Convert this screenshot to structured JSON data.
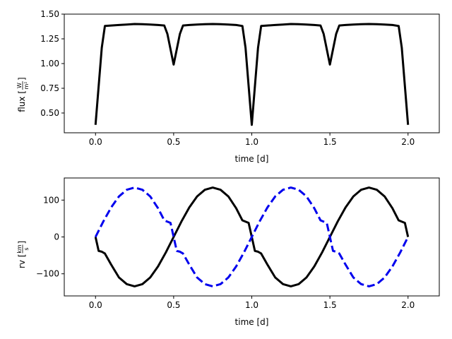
{
  "chart_data": [
    {
      "type": "line",
      "xlabel": "time [d]",
      "ylabel": {
        "prefix": "flux [",
        "num": "W",
        "den": "m²",
        "suffix": "]"
      },
      "xlim": [
        -0.2,
        2.2
      ],
      "ylim": [
        0.3,
        1.5
      ],
      "xticks": [
        0.0,
        0.5,
        1.0,
        1.5,
        2.0
      ],
      "xtick_labels": [
        "0.0",
        "0.5",
        "1.0",
        "1.5",
        "2.0"
      ],
      "yticks": [
        0.5,
        0.75,
        1.0,
        1.25,
        1.5
      ],
      "ytick_labels": [
        "0.50",
        "0.75",
        "1.00",
        "1.25",
        "1.50"
      ],
      "grid": false,
      "series": [
        {
          "color": "#000000",
          "dash": "solid",
          "x": [
            0.0,
            0.04,
            0.06,
            0.1,
            0.15,
            0.2,
            0.25,
            0.3,
            0.35,
            0.4,
            0.44,
            0.46,
            0.5,
            0.54,
            0.56,
            0.6,
            0.65,
            0.7,
            0.75,
            0.8,
            0.85,
            0.9,
            0.94,
            0.96,
            1.0,
            1.04,
            1.06,
            1.1,
            1.15,
            1.2,
            1.25,
            1.3,
            1.35,
            1.4,
            1.44,
            1.46,
            1.5,
            1.54,
            1.56,
            1.6,
            1.65,
            1.7,
            1.75,
            1.8,
            1.85,
            1.9,
            1.94,
            1.96,
            2.0
          ],
          "y": [
            0.38,
            1.16,
            1.38,
            1.385,
            1.39,
            1.395,
            1.4,
            1.398,
            1.395,
            1.39,
            1.385,
            1.3,
            0.99,
            1.3,
            1.385,
            1.39,
            1.395,
            1.398,
            1.4,
            1.398,
            1.395,
            1.39,
            1.38,
            1.16,
            0.38,
            1.16,
            1.38,
            1.385,
            1.39,
            1.395,
            1.4,
            1.398,
            1.395,
            1.39,
            1.385,
            1.3,
            0.99,
            1.3,
            1.385,
            1.39,
            1.395,
            1.398,
            1.4,
            1.398,
            1.395,
            1.39,
            1.38,
            1.16,
            0.38
          ]
        }
      ]
    },
    {
      "type": "line",
      "xlabel": "time [d]",
      "ylabel": {
        "prefix": "rv [",
        "num": "km",
        "den": "s",
        "suffix": "]"
      },
      "xlim": [
        -0.2,
        2.2
      ],
      "ylim": [
        -160,
        160
      ],
      "xticks": [
        0.0,
        0.5,
        1.0,
        1.5,
        2.0
      ],
      "xtick_labels": [
        "0.0",
        "0.5",
        "1.0",
        "1.5",
        "2.0"
      ],
      "yticks": [
        -100,
        0,
        100
      ],
      "ytick_labels": [
        "−100",
        "0",
        "100"
      ],
      "grid": false,
      "series": [
        {
          "color": "#000000",
          "dash": "solid",
          "x": [
            0.0,
            0.02,
            0.04,
            0.06,
            0.1,
            0.15,
            0.2,
            0.25,
            0.3,
            0.35,
            0.4,
            0.45,
            0.5,
            0.55,
            0.6,
            0.65,
            0.7,
            0.75,
            0.8,
            0.85,
            0.9,
            0.94,
            0.98,
            1.0,
            1.02,
            1.04,
            1.06,
            1.1,
            1.15,
            1.2,
            1.25,
            1.3,
            1.35,
            1.4,
            1.45,
            1.5,
            1.55,
            1.6,
            1.65,
            1.7,
            1.75,
            1.8,
            1.85,
            1.9,
            1.94,
            1.98,
            2.0
          ],
          "y": [
            0,
            -38,
            -40,
            -45,
            -75,
            -110,
            -128,
            -134,
            -128,
            -110,
            -80,
            -42,
            0,
            42,
            80,
            110,
            128,
            134,
            128,
            110,
            78,
            45,
            38,
            0,
            -38,
            -40,
            -45,
            -75,
            -110,
            -128,
            -134,
            -128,
            -110,
            -80,
            -42,
            0,
            42,
            80,
            110,
            128,
            134,
            128,
            110,
            78,
            45,
            38,
            0
          ]
        },
        {
          "color": "#0000ee",
          "dash": "dashed",
          "x": [
            0.0,
            0.05,
            0.1,
            0.15,
            0.2,
            0.25,
            0.3,
            0.35,
            0.4,
            0.44,
            0.48,
            0.5,
            0.52,
            0.54,
            0.56,
            0.6,
            0.65,
            0.7,
            0.75,
            0.8,
            0.85,
            0.9,
            0.95,
            1.0,
            1.05,
            1.1,
            1.15,
            1.2,
            1.25,
            1.3,
            1.35,
            1.4,
            1.44,
            1.48,
            1.5,
            1.52,
            1.54,
            1.56,
            1.6,
            1.65,
            1.7,
            1.75,
            1.8,
            1.85,
            1.9,
            1.95,
            2.0
          ],
          "y": [
            0,
            42,
            80,
            110,
            128,
            134,
            128,
            110,
            78,
            45,
            38,
            0,
            -38,
            -40,
            -45,
            -75,
            -110,
            -128,
            -134,
            -128,
            -110,
            -80,
            -42,
            0,
            42,
            80,
            110,
            128,
            134,
            128,
            110,
            78,
            45,
            38,
            0,
            -38,
            -40,
            -45,
            -75,
            -110,
            -128,
            -134,
            -128,
            -110,
            -80,
            -42,
            0
          ]
        }
      ]
    }
  ]
}
